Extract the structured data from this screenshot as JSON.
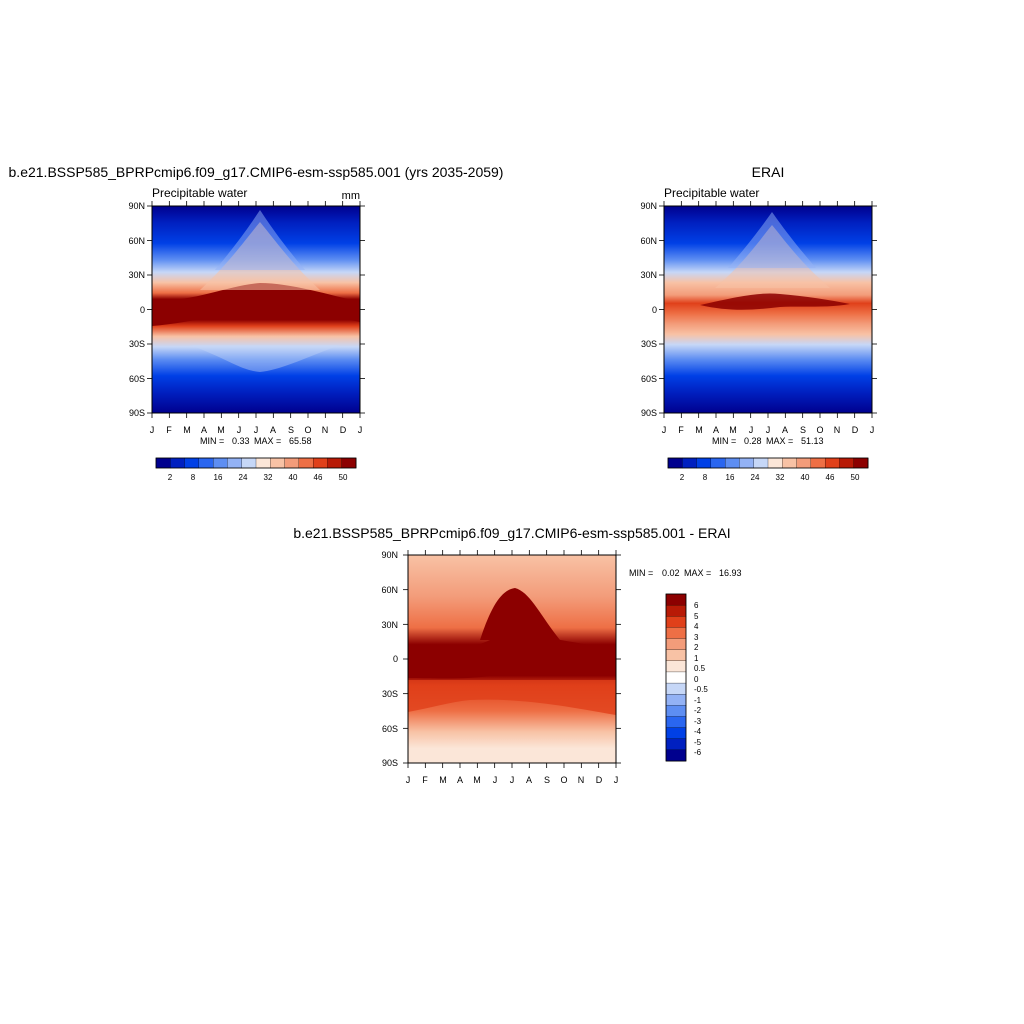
{
  "figure": {
    "panel1": {
      "title": "b.e21.BSSP585_BPRPcmip6.f09_g17.CMIP6-esm-ssp585.001 (yrs 2035-2059)",
      "left_label": "Precipitable water",
      "right_label": "mm",
      "stats_min_label": "MIN =",
      "stats_min": "0.33",
      "stats_max_label": "MAX =",
      "stats_max": "65.58"
    },
    "panel2": {
      "title": "ERAI",
      "left_label": "Precipitable water",
      "stats_min_label": "MIN =",
      "stats_min": "0.28",
      "stats_max_label": "MAX =",
      "stats_max": "51.13"
    },
    "panel3": {
      "title": "b.e21.BSSP585_BPRPcmip6.f09_g17.CMIP6-esm-ssp585.001 - ERAI",
      "stats_min_label": "MIN =",
      "stats_min": "0.02",
      "stats_max_label": "MAX =",
      "stats_max": "16.93"
    }
  },
  "chart_data": [
    {
      "type": "heatmap",
      "title": "b.e21.BSSP585_BPRPcmip6.f09_g17.CMIP6-esm-ssp585.001 (yrs 2035-2059)",
      "variable": "Precipitable water",
      "units": "mm",
      "x_ticks": [
        "J",
        "F",
        "M",
        "A",
        "M",
        "J",
        "J",
        "A",
        "S",
        "O",
        "N",
        "D",
        "J"
      ],
      "y_ticks": [
        "90N",
        "60N",
        "30N",
        "0",
        "30S",
        "60S",
        "90S"
      ],
      "min": 0.33,
      "max": 65.58,
      "colorbar_levels": [
        2,
        4,
        8,
        12,
        16,
        20,
        24,
        28,
        32,
        36,
        40,
        44,
        46,
        50
      ],
      "colorbar_labels": [
        "2",
        "8",
        "16",
        "24",
        "32",
        "40",
        "46",
        "50"
      ]
    },
    {
      "type": "heatmap",
      "title": "ERAI",
      "variable": "Precipitable water",
      "x_ticks": [
        "J",
        "F",
        "M",
        "A",
        "M",
        "J",
        "J",
        "A",
        "S",
        "O",
        "N",
        "D",
        "J"
      ],
      "y_ticks": [
        "90N",
        "60N",
        "30N",
        "0",
        "30S",
        "60S",
        "90S"
      ],
      "min": 0.28,
      "max": 51.13,
      "colorbar_levels": [
        2,
        4,
        8,
        12,
        16,
        20,
        24,
        28,
        32,
        36,
        40,
        44,
        46,
        50
      ],
      "colorbar_labels": [
        "2",
        "8",
        "16",
        "24",
        "32",
        "40",
        "46",
        "50"
      ]
    },
    {
      "type": "heatmap",
      "title": "b.e21.BSSP585_BPRPcmip6.f09_g17.CMIP6-esm-ssp585.001 - ERAI",
      "x_ticks": [
        "J",
        "F",
        "M",
        "A",
        "M",
        "J",
        "J",
        "A",
        "S",
        "O",
        "N",
        "D",
        "J"
      ],
      "y_ticks": [
        "90N",
        "60N",
        "30N",
        "0",
        "30S",
        "60S",
        "90S"
      ],
      "min": 0.02,
      "max": 16.93,
      "colorbar_levels": [
        "6",
        "5",
        "4",
        "3",
        "2",
        "1",
        "0.5",
        "0",
        "-0.5",
        "-1",
        "-2",
        "-3",
        "-4",
        "-5",
        "-6"
      ]
    }
  ],
  "colors": {
    "cbar_main": [
      "#00008e",
      "#0020c0",
      "#0040e6",
      "#2a66f0",
      "#5e8ef2",
      "#93b2f5",
      "#c6d7f7",
      "#fbe6d8",
      "#f8c2a5",
      "#f39c7a",
      "#ee6f45",
      "#e0401a",
      "#b81a06",
      "#8c0000"
    ],
    "cbar_diff": [
      "#8c0000",
      "#b81a06",
      "#e0401a",
      "#ee6f45",
      "#f39c7a",
      "#f8c2a5",
      "#fbe6d8",
      "#ffffff",
      "#c6d7f7",
      "#93b2f5",
      "#5e8ef2",
      "#2a66f0",
      "#0040e6",
      "#0020c0",
      "#00008e"
    ]
  }
}
